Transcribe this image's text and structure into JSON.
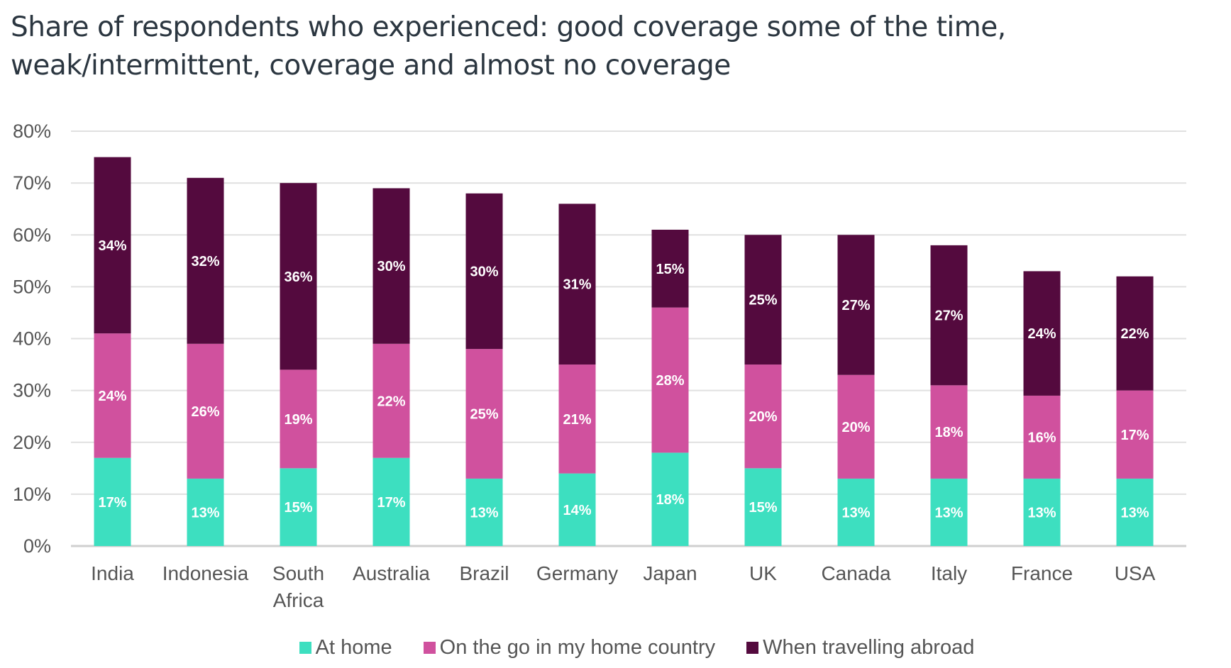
{
  "chart_data": {
    "type": "bar",
    "stacked": true,
    "title": "Share of respondents who experienced: good coverage some of the time, weak/intermittent, coverage and almost no coverage",
    "xlabel": "",
    "ylabel": "",
    "ylim": [
      0,
      80
    ],
    "yticks": [
      "0%",
      "10%",
      "20%",
      "30%",
      "40%",
      "50%",
      "60%",
      "70%",
      "80%"
    ],
    "grid": true,
    "legend_position": "bottom",
    "categories": [
      "India",
      "Indonesia",
      "South Africa",
      "Australia",
      "Brazil",
      "Germany",
      "Japan",
      "UK",
      "Canada",
      "Italy",
      "France",
      "USA"
    ],
    "series": [
      {
        "name": "At home",
        "color": "#3ddfc0",
        "values": [
          17,
          13,
          15,
          17,
          13,
          14,
          18,
          15,
          13,
          13,
          13,
          13
        ]
      },
      {
        "name": "On the go in my home country",
        "color": "#d0519e",
        "values": [
          24,
          26,
          19,
          22,
          25,
          21,
          28,
          20,
          20,
          18,
          16,
          17
        ]
      },
      {
        "name": "When travelling abroad",
        "color": "#540a3e",
        "values": [
          34,
          32,
          36,
          30,
          30,
          31,
          15,
          25,
          27,
          27,
          24,
          22
        ]
      }
    ]
  }
}
